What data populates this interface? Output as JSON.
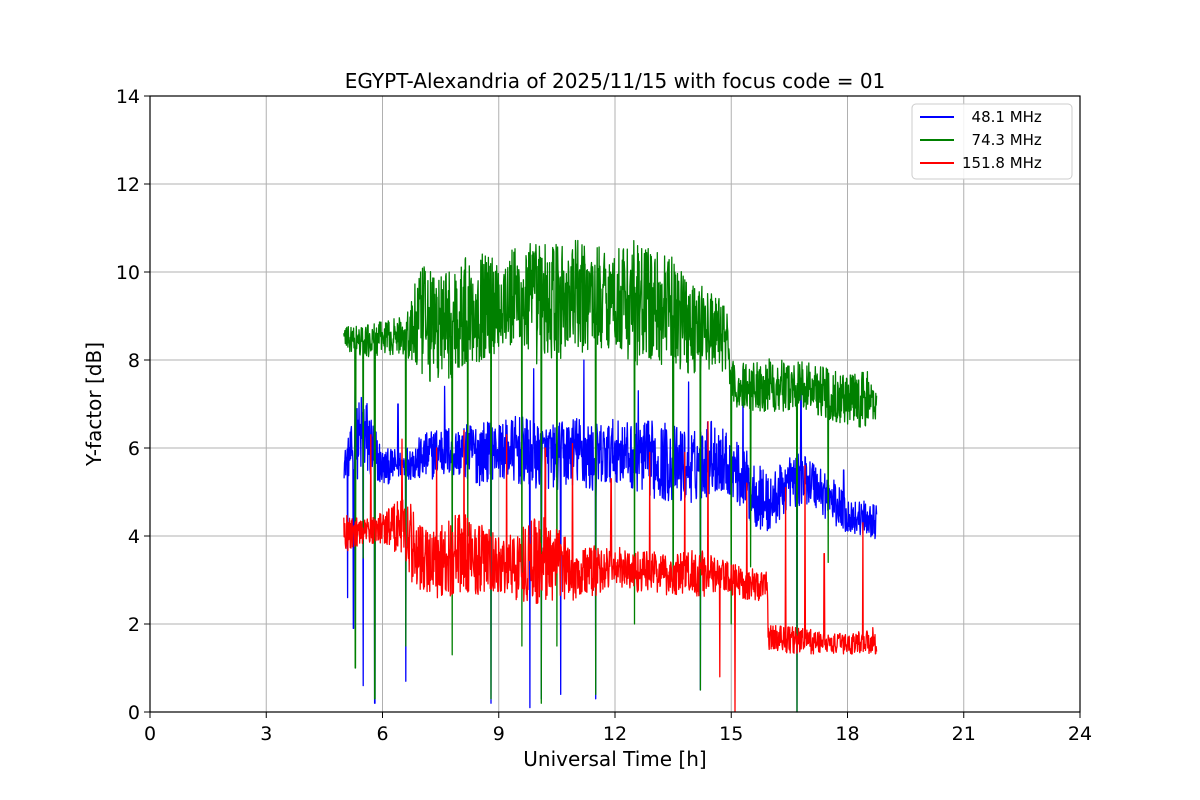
{
  "chart_data": {
    "type": "line",
    "title": "EGYPT-Alexandria of 2025/11/15 with focus code = 01",
    "xlabel": "Universal Time [h]",
    "ylabel": "Y-factor [dB]",
    "xlim": [
      0,
      24
    ],
    "ylim": [
      0,
      14
    ],
    "xticks": [
      0,
      3,
      6,
      9,
      12,
      15,
      18,
      21,
      24
    ],
    "yticks": [
      0,
      2,
      4,
      6,
      8,
      10,
      12,
      14
    ],
    "grid": true,
    "legend_position": "top-right",
    "series": [
      {
        "name": "48.1 MHz",
        "legend_label": "  48.1 MHz",
        "color": "#0000ff",
        "x_start": 5.0,
        "x_end": 18.75,
        "envelope": [
          [
            5.0,
            5.3,
            5.9
          ],
          [
            5.5,
            5.2,
            7.5
          ],
          [
            6.0,
            5.1,
            6.0
          ],
          [
            6.5,
            5.3,
            6.0
          ],
          [
            7.0,
            5.2,
            6.3
          ],
          [
            7.5,
            5.3,
            6.6
          ],
          [
            8.0,
            5.3,
            6.5
          ],
          [
            8.5,
            5.1,
            6.7
          ],
          [
            9.0,
            5.3,
            6.6
          ],
          [
            9.5,
            5.1,
            6.8
          ],
          [
            10.0,
            5.0,
            6.6
          ],
          [
            10.5,
            5.0,
            6.6
          ],
          [
            11.0,
            5.1,
            6.8
          ],
          [
            11.5,
            4.8,
            6.6
          ],
          [
            12.0,
            5.2,
            6.7
          ],
          [
            12.5,
            5.0,
            6.6
          ],
          [
            13.0,
            4.8,
            6.7
          ],
          [
            13.5,
            4.7,
            6.6
          ],
          [
            14.0,
            4.7,
            6.4
          ],
          [
            14.5,
            4.9,
            6.8
          ],
          [
            15.0,
            4.9,
            6.3
          ],
          [
            15.5,
            4.2,
            5.9
          ],
          [
            16.0,
            4.0,
            5.4
          ],
          [
            16.5,
            4.6,
            5.9
          ],
          [
            17.0,
            4.7,
            5.9
          ],
          [
            17.5,
            4.3,
            5.5
          ],
          [
            18.0,
            4.0,
            4.9
          ],
          [
            18.5,
            4.0,
            4.8
          ],
          [
            18.75,
            3.9,
            4.7
          ]
        ],
        "dips": [
          [
            5.1,
            2.6
          ],
          [
            5.25,
            1.9
          ],
          [
            5.5,
            0.6
          ],
          [
            5.8,
            0.2
          ],
          [
            6.6,
            0.7
          ],
          [
            8.8,
            0.2
          ],
          [
            9.8,
            0.1
          ],
          [
            10.1,
            0.3
          ],
          [
            10.6,
            0.4
          ],
          [
            11.5,
            0.3
          ],
          [
            14.2,
            0.5
          ],
          [
            16.7,
            0.0
          ]
        ],
        "spikes": [
          [
            5.3,
            7.6
          ],
          [
            6.4,
            7.0
          ],
          [
            7.6,
            7.4
          ],
          [
            9.9,
            7.8
          ],
          [
            11.2,
            8.0
          ],
          [
            12.6,
            7.3
          ],
          [
            13.9,
            7.5
          ],
          [
            15.3,
            7.8
          ],
          [
            16.8,
            7.4
          ],
          [
            17.9,
            5.5
          ]
        ]
      },
      {
        "name": "74.3 MHz",
        "legend_label": "  74.3 MHz",
        "color": "#008000",
        "x_start": 5.0,
        "x_end": 18.75,
        "envelope": [
          [
            5.0,
            8.2,
            8.8
          ],
          [
            5.5,
            8.0,
            8.8
          ],
          [
            6.0,
            8.1,
            8.9
          ],
          [
            6.5,
            8.1,
            9.0
          ],
          [
            7.0,
            7.4,
            10.2
          ],
          [
            7.5,
            7.4,
            10.1
          ],
          [
            8.0,
            7.6,
            10.4
          ],
          [
            8.5,
            7.9,
            10.5
          ],
          [
            9.0,
            8.1,
            10.5
          ],
          [
            9.5,
            8.1,
            10.7
          ],
          [
            10.0,
            7.8,
            10.8
          ],
          [
            10.5,
            7.9,
            10.8
          ],
          [
            11.0,
            8.0,
            10.8
          ],
          [
            11.5,
            8.2,
            10.7
          ],
          [
            12.0,
            8.2,
            10.6
          ],
          [
            12.5,
            7.8,
            10.9
          ],
          [
            13.0,
            7.8,
            10.6
          ],
          [
            13.5,
            7.8,
            10.4
          ],
          [
            14.0,
            7.6,
            10.0
          ],
          [
            14.5,
            7.7,
            9.6
          ],
          [
            14.9,
            7.7,
            9.3
          ],
          [
            15.0,
            6.8,
            8.0
          ],
          [
            15.5,
            6.8,
            8.0
          ],
          [
            16.0,
            6.8,
            8.1
          ],
          [
            16.5,
            6.8,
            8.0
          ],
          [
            17.0,
            6.8,
            8.0
          ],
          [
            17.5,
            6.6,
            7.9
          ],
          [
            18.0,
            6.5,
            7.7
          ],
          [
            18.5,
            6.4,
            7.8
          ],
          [
            18.75,
            6.5,
            7.5
          ]
        ],
        "dips": [
          [
            5.3,
            1.0
          ],
          [
            5.5,
            3.5
          ],
          [
            5.8,
            0.3
          ],
          [
            6.6,
            1.5
          ],
          [
            7.8,
            1.3
          ],
          [
            8.2,
            4.0
          ],
          [
            8.8,
            0.3
          ],
          [
            9.6,
            1.5
          ],
          [
            10.1,
            0.2
          ],
          [
            10.5,
            1.5
          ],
          [
            11.5,
            0.4
          ],
          [
            12.5,
            2.0
          ],
          [
            13.5,
            3.0
          ],
          [
            14.2,
            0.5
          ],
          [
            15.0,
            2.0
          ],
          [
            15.5,
            3.3
          ],
          [
            16.7,
            0.0
          ],
          [
            17.5,
            3.4
          ]
        ],
        "spikes": []
      },
      {
        "name": "151.8 MHz",
        "legend_label": "151.8 MHz",
        "color": "#ff0000",
        "x_start": 5.0,
        "x_end": 18.75,
        "envelope": [
          [
            5.0,
            3.6,
            4.6
          ],
          [
            5.5,
            3.8,
            4.4
          ],
          [
            6.0,
            3.8,
            4.6
          ],
          [
            6.5,
            3.5,
            5.0
          ],
          [
            6.8,
            2.8,
            4.7
          ],
          [
            7.0,
            2.6,
            4.3
          ],
          [
            7.5,
            2.5,
            4.4
          ],
          [
            8.0,
            2.6,
            4.6
          ],
          [
            8.5,
            2.6,
            4.4
          ],
          [
            9.0,
            2.6,
            4.0
          ],
          [
            9.5,
            2.5,
            4.2
          ],
          [
            10.0,
            2.4,
            4.6
          ],
          [
            10.5,
            2.5,
            4.2
          ],
          [
            11.0,
            2.5,
            3.9
          ],
          [
            11.5,
            2.6,
            3.8
          ],
          [
            12.0,
            2.8,
            3.8
          ],
          [
            12.5,
            2.7,
            3.7
          ],
          [
            13.0,
            2.7,
            3.7
          ],
          [
            13.5,
            2.6,
            3.6
          ],
          [
            14.0,
            2.6,
            3.8
          ],
          [
            14.5,
            2.6,
            3.6
          ],
          [
            15.0,
            2.6,
            3.4
          ],
          [
            15.5,
            2.5,
            3.3
          ],
          [
            15.9,
            2.5,
            3.2
          ],
          [
            16.0,
            1.4,
            2.0
          ],
          [
            16.5,
            1.3,
            2.0
          ],
          [
            17.0,
            1.3,
            1.9
          ],
          [
            17.5,
            1.3,
            1.8
          ],
          [
            18.0,
            1.3,
            1.8
          ],
          [
            18.5,
            1.3,
            1.9
          ],
          [
            18.75,
            1.3,
            2.0
          ]
        ],
        "dips": [
          [
            14.7,
            0.8
          ],
          [
            15.1,
            0.0
          ]
        ],
        "spikes": [
          [
            5.7,
            6.3
          ],
          [
            6.5,
            6.2
          ],
          [
            7.4,
            6.0
          ],
          [
            8.1,
            6.4
          ],
          [
            9.2,
            6.3
          ],
          [
            10.2,
            6.0
          ],
          [
            10.9,
            6.1
          ],
          [
            11.9,
            5.3
          ],
          [
            12.9,
            5.9
          ],
          [
            13.8,
            5.9
          ],
          [
            14.4,
            6.6
          ],
          [
            15.4,
            5.2
          ],
          [
            16.4,
            5.1
          ],
          [
            16.9,
            5.6
          ],
          [
            17.4,
            3.6
          ],
          [
            18.4,
            4.3
          ]
        ]
      }
    ]
  }
}
